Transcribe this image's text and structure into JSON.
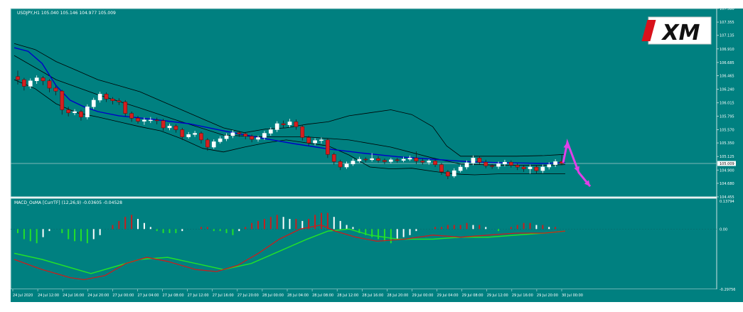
{
  "window": {
    "main_label": "USDJPY,H1  105.040 105.146 104.977 105.009",
    "sub_label": "MACD_OsMA [CurrTF] (12,26,9) -0.03605 -0.04528",
    "logo_text": "XM"
  },
  "colors": {
    "background": "#008080",
    "border": "#cfe3e3",
    "bull": "#ffffff",
    "bear": "#d41f1f",
    "ma": "#0000c8",
    "bands": "#000000",
    "macd_line": "#c81e1e",
    "signal_line": "#22e02a",
    "hist_up": "#ffffff",
    "hist_down": "#c81e1e",
    "hist_green": "#22e02a",
    "arrow": "#e040e8",
    "text": "#ffffff"
  },
  "chart_data": [
    {
      "type": "candlestick",
      "symbol": "USDJPY",
      "timeframe": "H1",
      "ylim": [
        104.455,
        107.58
      ],
      "y_ticks": [
        "107.580",
        "107.355",
        "107.135",
        "106.910",
        "106.685",
        "106.465",
        "106.240",
        "106.015",
        "105.795",
        "105.570",
        "105.350",
        "105.125",
        "104.900",
        "104.680",
        "104.455"
      ],
      "current_price": "105.009",
      "x_labels": [
        "24 Jul 2020",
        "24 Jul 12:00",
        "24 Jul 16:00",
        "24 Jul 20:00",
        "27 Jul 00:00",
        "27 Jul 04:00",
        "27 Jul 08:00",
        "27 Jul 12:00",
        "27 Jul 16:00",
        "27 Jul 20:00",
        "28 Jul 00:00",
        "28 Jul 04:00",
        "28 Jul 08:00",
        "28 Jul 12:00",
        "28 Jul 16:00",
        "28 Jul 20:00",
        "29 Jul 00:00",
        "29 Jul 04:00",
        "29 Jul 08:00",
        "29 Jul 12:00",
        "29 Jul 16:00",
        "29 Jul 20:00",
        "30 Jul 00:00"
      ],
      "candles": [
        [
          106.45,
          106.4,
          106.32,
          106.55
        ],
        [
          106.4,
          106.29,
          106.22,
          106.43
        ],
        [
          106.29,
          106.38,
          106.25,
          106.42
        ],
        [
          106.38,
          106.43,
          106.33,
          106.47
        ],
        [
          106.43,
          106.38,
          106.31,
          106.46
        ],
        [
          106.38,
          106.26,
          106.19,
          106.41
        ],
        [
          106.26,
          106.21,
          106.14,
          106.3
        ],
        [
          106.21,
          105.9,
          105.82,
          106.23
        ],
        [
          105.9,
          105.85,
          105.79,
          105.95
        ],
        [
          105.85,
          105.87,
          105.81,
          105.91
        ],
        [
          105.87,
          105.78,
          105.72,
          105.9
        ],
        [
          105.78,
          105.95,
          105.74,
          105.99
        ],
        [
          105.95,
          106.06,
          105.91,
          106.1
        ],
        [
          106.06,
          106.16,
          106.02,
          106.2
        ],
        [
          106.16,
          106.08,
          106.03,
          106.19
        ],
        [
          106.08,
          106.05,
          105.99,
          106.11
        ],
        [
          106.05,
          106.03,
          105.98,
          106.09
        ],
        [
          106.03,
          105.84,
          105.79,
          106.06
        ],
        [
          105.84,
          105.76,
          105.7,
          105.87
        ],
        [
          105.76,
          105.71,
          105.67,
          105.8
        ],
        [
          105.71,
          105.73,
          105.65,
          105.77
        ],
        [
          105.73,
          105.73,
          105.68,
          105.78
        ],
        [
          105.73,
          105.72,
          105.66,
          105.77
        ],
        [
          105.72,
          105.6,
          105.55,
          105.75
        ],
        [
          105.6,
          105.63,
          105.56,
          105.67
        ],
        [
          105.63,
          105.57,
          105.52,
          105.66
        ],
        [
          105.57,
          105.45,
          105.4,
          105.6
        ],
        [
          105.45,
          105.49,
          105.42,
          105.53
        ],
        [
          105.49,
          105.51,
          105.45,
          105.55
        ],
        [
          105.51,
          105.4,
          105.34,
          105.54
        ],
        [
          105.4,
          105.28,
          105.22,
          105.43
        ],
        [
          105.28,
          105.37,
          105.25,
          105.41
        ],
        [
          105.37,
          105.42,
          105.34,
          105.46
        ],
        [
          105.42,
          105.47,
          105.38,
          105.51
        ],
        [
          105.47,
          105.52,
          105.43,
          105.56
        ],
        [
          105.52,
          105.5,
          105.45,
          105.55
        ],
        [
          105.5,
          105.46,
          105.41,
          105.53
        ],
        [
          105.46,
          105.41,
          105.36,
          105.49
        ],
        [
          105.41,
          105.44,
          105.37,
          105.47
        ],
        [
          105.44,
          105.51,
          105.4,
          105.55
        ],
        [
          105.51,
          105.57,
          105.47,
          105.61
        ],
        [
          105.57,
          105.67,
          105.53,
          105.71
        ],
        [
          105.67,
          105.65,
          105.6,
          105.72
        ],
        [
          105.65,
          105.7,
          105.61,
          105.75
        ],
        [
          105.7,
          105.62,
          105.57,
          105.74
        ],
        [
          105.62,
          105.44,
          105.39,
          105.65
        ],
        [
          105.44,
          105.35,
          105.3,
          105.47
        ],
        [
          105.35,
          105.39,
          105.31,
          105.43
        ],
        [
          105.39,
          105.4,
          105.34,
          105.44
        ],
        [
          105.4,
          105.16,
          105.1,
          105.42
        ],
        [
          105.16,
          105.04,
          104.99,
          105.19
        ],
        [
          105.04,
          104.95,
          104.9,
          105.07
        ],
        [
          104.95,
          105.0,
          104.92,
          105.04
        ],
        [
          105.0,
          105.05,
          104.97,
          105.09
        ],
        [
          105.05,
          105.08,
          105.02,
          105.12
        ],
        [
          105.08,
          105.07,
          105.03,
          105.11
        ],
        [
          105.07,
          105.09,
          105.04,
          105.18
        ],
        [
          105.09,
          105.06,
          105.02,
          105.13
        ],
        [
          105.06,
          105.04,
          105.0,
          105.09
        ],
        [
          105.04,
          105.07,
          105.01,
          105.1
        ],
        [
          105.07,
          105.06,
          105.02,
          105.1
        ],
        [
          105.06,
          105.08,
          105.03,
          105.12
        ],
        [
          105.08,
          105.1,
          105.05,
          105.14
        ],
        [
          105.1,
          105.05,
          105.0,
          105.21
        ],
        [
          105.05,
          105.03,
          104.99,
          105.09
        ],
        [
          105.03,
          105.05,
          104.99,
          105.08
        ],
        [
          105.05,
          104.99,
          104.95,
          105.07
        ],
        [
          104.99,
          104.87,
          104.82,
          105.02
        ],
        [
          104.87,
          104.8,
          104.75,
          104.9
        ],
        [
          104.8,
          104.89,
          104.77,
          104.93
        ],
        [
          104.89,
          104.95,
          104.86,
          104.99
        ],
        [
          104.95,
          105.02,
          104.91,
          105.06
        ],
        [
          105.02,
          105.1,
          104.98,
          105.14
        ],
        [
          105.1,
          105.03,
          104.99,
          105.13
        ],
        [
          105.03,
          104.97,
          104.93,
          105.07
        ],
        [
          104.97,
          104.96,
          104.92,
          105.0
        ],
        [
          104.96,
          105.0,
          104.92,
          105.04
        ],
        [
          105.0,
          105.03,
          104.96,
          105.07
        ],
        [
          105.03,
          104.98,
          104.94,
          105.06
        ],
        [
          104.98,
          104.95,
          104.9,
          105.01
        ],
        [
          104.95,
          104.92,
          104.87,
          104.98
        ],
        [
          104.92,
          104.95,
          104.84,
          104.99
        ],
        [
          104.95,
          104.89,
          104.84,
          104.98
        ],
        [
          104.89,
          104.95,
          104.85,
          104.99
        ],
        [
          104.95,
          104.99,
          104.91,
          105.03
        ],
        [
          104.99,
          105.04,
          104.95,
          105.08
        ],
        [
          105.04,
          105.01,
          104.98,
          105.15
        ]
      ],
      "ma": [
        [
          0,
          106.93
        ],
        [
          20,
          106.87
        ],
        [
          40,
          106.67
        ],
        [
          60,
          106.3
        ],
        [
          80,
          106.06
        ],
        [
          100,
          105.95
        ],
        [
          120,
          105.87
        ],
        [
          150,
          105.8
        ],
        [
          200,
          105.74
        ],
        [
          250,
          105.67
        ],
        [
          300,
          105.55
        ],
        [
          350,
          105.44
        ],
        [
          400,
          105.34
        ],
        [
          450,
          105.25
        ],
        [
          500,
          105.18
        ],
        [
          550,
          105.12
        ],
        [
          600,
          105.08
        ],
        [
          650,
          105.04
        ],
        [
          700,
          105.02
        ],
        [
          760,
          105.01
        ],
        [
          790,
          105.02
        ]
      ],
      "band_upper": [
        [
          0,
          107.0
        ],
        [
          30,
          106.9
        ],
        [
          60,
          106.7
        ],
        [
          90,
          106.55
        ],
        [
          120,
          106.4
        ],
        [
          150,
          106.3
        ],
        [
          180,
          106.2
        ],
        [
          210,
          106.05
        ],
        [
          240,
          105.9
        ],
        [
          270,
          105.75
        ],
        [
          300,
          105.6
        ],
        [
          330,
          105.52
        ],
        [
          360,
          105.58
        ],
        [
          390,
          105.6
        ],
        [
          420,
          105.66
        ],
        [
          450,
          105.7
        ],
        [
          480,
          105.8
        ],
        [
          510,
          105.85
        ],
        [
          540,
          105.9
        ],
        [
          570,
          105.82
        ],
        [
          600,
          105.62
        ],
        [
          620,
          105.3
        ],
        [
          640,
          105.13
        ],
        [
          680,
          105.13
        ],
        [
          720,
          105.13
        ],
        [
          760,
          105.14
        ],
        [
          790,
          105.16
        ]
      ],
      "band_lower": [
        [
          0,
          106.4
        ],
        [
          30,
          106.25
        ],
        [
          60,
          106.0
        ],
        [
          90,
          105.85
        ],
        [
          120,
          105.78
        ],
        [
          150,
          105.7
        ],
        [
          180,
          105.62
        ],
        [
          210,
          105.55
        ],
        [
          240,
          105.42
        ],
        [
          270,
          105.26
        ],
        [
          300,
          105.2
        ],
        [
          330,
          105.28
        ],
        [
          360,
          105.35
        ],
        [
          390,
          105.4
        ],
        [
          420,
          105.35
        ],
        [
          450,
          105.3
        ],
        [
          480,
          105.15
        ],
        [
          510,
          104.95
        ],
        [
          540,
          104.92
        ],
        [
          570,
          104.93
        ],
        [
          600,
          104.88
        ],
        [
          620,
          104.85
        ],
        [
          640,
          104.83
        ],
        [
          660,
          104.82
        ],
        [
          700,
          104.84
        ],
        [
          740,
          104.84
        ],
        [
          790,
          104.84
        ]
      ],
      "band_middle": [
        [
          0,
          106.8
        ],
        [
          60,
          106.4
        ],
        [
          120,
          106.15
        ],
        [
          180,
          105.93
        ],
        [
          240,
          105.7
        ],
        [
          300,
          105.48
        ],
        [
          360,
          105.45
        ],
        [
          420,
          105.45
        ],
        [
          480,
          105.4
        ],
        [
          540,
          105.28
        ],
        [
          600,
          105.1
        ],
        [
          640,
          105.0
        ],
        [
          700,
          104.98
        ],
        [
          760,
          104.98
        ],
        [
          790,
          104.99
        ]
      ],
      "arrow_points": [
        [
          105.02,
          "start"
        ],
        [
          105.36,
          "peak"
        ],
        [
          104.86,
          "mid"
        ],
        [
          104.63,
          "end"
        ]
      ]
    },
    {
      "type": "macd",
      "ylim": [
        -0.29756,
        0.13794
      ],
      "y_ticks": [
        "0.13794",
        "0.00",
        "-0.29756"
      ],
      "histogram": [
        -0.02,
        -0.05,
        -0.06,
        -0.07,
        -0.04,
        -0.01,
        0.0,
        -0.02,
        -0.05,
        -0.06,
        -0.06,
        -0.07,
        -0.05,
        -0.03,
        0.0,
        0.02,
        0.04,
        0.06,
        0.07,
        0.05,
        0.03,
        0.01,
        -0.01,
        -0.02,
        -0.02,
        -0.02,
        -0.01,
        0.0,
        0.0,
        0.01,
        0.01,
        -0.01,
        -0.01,
        -0.02,
        -0.03,
        -0.01,
        0.01,
        0.03,
        0.04,
        0.05,
        0.06,
        0.07,
        0.06,
        0.05,
        0.05,
        0.04,
        0.05,
        0.07,
        0.08,
        0.08,
        0.06,
        0.04,
        0.02,
        0.01,
        -0.02,
        -0.03,
        -0.04,
        -0.05,
        -0.06,
        -0.07,
        -0.05,
        -0.04,
        -0.03,
        -0.01,
        0.0,
        0.0,
        0.01,
        0.01,
        0.02,
        0.02,
        0.02,
        0.03,
        0.02,
        0.02,
        0.01,
        0.0,
        -0.01,
        0.0,
        0.01,
        0.02,
        0.03,
        0.03,
        0.02,
        0.02,
        0.01,
        0.01,
        0.0
      ],
      "macd_line": [
        [
          0,
          -0.15
        ],
        [
          40,
          -0.2
        ],
        [
          80,
          -0.24
        ],
        [
          100,
          -0.25
        ],
        [
          130,
          -0.23
        ],
        [
          160,
          -0.17
        ],
        [
          190,
          -0.14
        ],
        [
          220,
          -0.16
        ],
        [
          260,
          -0.2
        ],
        [
          290,
          -0.21
        ],
        [
          320,
          -0.18
        ],
        [
          350,
          -0.12
        ],
        [
          380,
          -0.05
        ],
        [
          410,
          0.0
        ],
        [
          440,
          0.02
        ],
        [
          460,
          -0.01
        ],
        [
          490,
          -0.04
        ],
        [
          520,
          -0.06
        ],
        [
          560,
          -0.05
        ],
        [
          600,
          -0.03
        ],
        [
          640,
          -0.04
        ],
        [
          680,
          -0.03
        ],
        [
          720,
          -0.02
        ],
        [
          760,
          -0.02
        ],
        [
          790,
          -0.01
        ]
      ],
      "signal_line": [
        [
          0,
          -0.12
        ],
        [
          40,
          -0.15
        ],
        [
          80,
          -0.19
        ],
        [
          110,
          -0.22
        ],
        [
          140,
          -0.19
        ],
        [
          180,
          -0.15
        ],
        [
          220,
          -0.14
        ],
        [
          260,
          -0.17
        ],
        [
          300,
          -0.2
        ],
        [
          340,
          -0.17
        ],
        [
          380,
          -0.11
        ],
        [
          420,
          -0.05
        ],
        [
          450,
          -0.01
        ],
        [
          480,
          0.0
        ],
        [
          510,
          -0.03
        ],
        [
          550,
          -0.05
        ],
        [
          600,
          -0.05
        ],
        [
          640,
          -0.04
        ],
        [
          680,
          -0.04
        ],
        [
          720,
          -0.03
        ],
        [
          760,
          -0.02
        ],
        [
          790,
          -0.01
        ]
      ]
    }
  ]
}
